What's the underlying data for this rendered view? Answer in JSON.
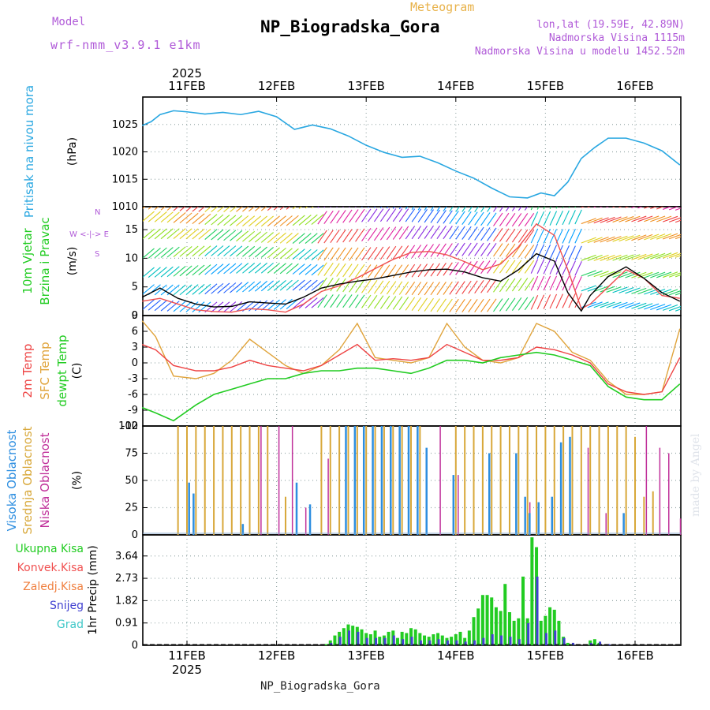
{
  "header": {
    "model_label": "Model",
    "model_name": "wrf-nmm_v3.9.1 e1km",
    "product": "Meteogram",
    "station": "NP_Biogradska_Gora",
    "coords": "lon,lat (19.59E, 42.89N)",
    "alt_station": "Nadmorska Visina 1115m",
    "alt_model": "Nadmorska Visina u modelu 1452.52m",
    "footer_station": "NP_Biogradska_Gora",
    "watermark": "made by Angel"
  },
  "time_axis": {
    "year": "2025",
    "days": [
      "11FEB",
      "12FEB",
      "13FEB",
      "14FEB",
      "15FEB",
      "16FEB"
    ]
  },
  "colors": {
    "pressure": "#29a7e1",
    "wind_speed": "#000000",
    "wind_gust": "#f05050",
    "temp_2m": "#ee4444",
    "temp_sfc": "#e0a43c",
    "dewpoint": "#22cc22",
    "cloud_high": "#2d8ee0",
    "cloud_mid": "#d8a83a",
    "cloud_low": "#c0309a",
    "precip_total": "#22cc22",
    "precip_conv": "#f05050",
    "precip_strat": "#f08040",
    "snow": "#4040d0",
    "hail": "#40c8c8",
    "accent_label": "#b05ad8"
  },
  "chart_data": [
    {
      "type": "line",
      "title": "",
      "ylabel": "Pritisak na nivou mora",
      "unit": "(hPa)",
      "yticks": [
        "1010",
        "1015",
        "1020",
        "1025"
      ],
      "ylim": [
        1010,
        1030
      ],
      "series": [
        {
          "name": "Pritisak na nivou mora",
          "x": [
            0,
            0.1,
            0.2,
            0.35,
            0.5,
            0.7,
            0.9,
            1.1,
            1.3,
            1.5,
            1.7,
            1.9,
            2.1,
            2.3,
            2.5,
            2.7,
            2.9,
            3.1,
            3.3,
            3.5,
            3.7,
            3.9,
            4.1,
            4.3,
            4.45,
            4.6,
            4.75,
            4.9,
            5.05,
            5.2,
            5.4,
            5.6,
            5.8,
            6.0
          ],
          "values": [
            1024.8,
            1025.5,
            1026.8,
            1027.5,
            1027.3,
            1026.9,
            1027.2,
            1026.8,
            1027.4,
            1026.4,
            1024.1,
            1024.9,
            1024.2,
            1022.9,
            1021.2,
            1019.9,
            1019.0,
            1019.2,
            1018.0,
            1016.5,
            1015.2,
            1013.4,
            1011.8,
            1011.6,
            1012.5,
            1012.0,
            1014.5,
            1018.8,
            1020.8,
            1022.5,
            1022.5,
            1021.6,
            1020.2,
            1017.6
          ]
        }
      ]
    },
    {
      "type": "line",
      "title": "",
      "ylabel": "10m Vjetar Brzina i Pravac",
      "unit": "(m/s)",
      "compass": {
        "n": "N",
        "s": "S",
        "w": "W",
        "e": "E"
      },
      "yticks": [
        "0",
        "5",
        "10",
        "15"
      ],
      "ylim": [
        0,
        19
      ],
      "series": [
        {
          "name": "Brzina",
          "x": [
            0,
            0.2,
            0.4,
            0.6,
            0.8,
            1.0,
            1.2,
            1.4,
            1.6,
            1.8,
            2.0,
            2.2,
            2.4,
            2.6,
            2.8,
            3.0,
            3.2,
            3.4,
            3.6,
            3.8,
            4.0,
            4.2,
            4.4,
            4.6,
            4.75,
            4.9,
            5.0,
            5.2,
            5.4,
            5.6,
            5.8,
            6.0
          ],
          "values": [
            3.2,
            4.8,
            3.0,
            2.0,
            1.5,
            1.6,
            2.4,
            2.2,
            2.0,
            3.2,
            4.8,
            5.5,
            6.0,
            6.4,
            7.0,
            7.6,
            8.0,
            8.1,
            7.6,
            6.6,
            6.0,
            8.0,
            10.8,
            9.5,
            4.0,
            0.8,
            3.5,
            6.8,
            8.5,
            6.5,
            4.0,
            2.5
          ]
        },
        {
          "name": "Udari",
          "x": [
            0,
            0.2,
            0.4,
            0.6,
            0.8,
            1.0,
            1.2,
            1.4,
            1.6,
            1.8,
            2.0,
            2.2,
            2.4,
            2.6,
            2.8,
            3.0,
            3.2,
            3.4,
            3.6,
            3.8,
            4.0,
            4.2,
            4.4,
            4.6,
            4.75,
            4.9,
            5.0,
            5.2,
            5.4,
            5.6,
            5.8,
            6.0
          ],
          "values": [
            2.5,
            3.0,
            2.0,
            1.0,
            0.7,
            0.6,
            1.2,
            1.0,
            0.6,
            2.0,
            4.2,
            5.2,
            6.6,
            8.2,
            9.8,
            11.0,
            11.2,
            10.6,
            9.4,
            8.0,
            9.0,
            12.0,
            16.0,
            14.0,
            8.0,
            1.2,
            2.0,
            5.0,
            8.0,
            6.5,
            3.5,
            3.0
          ]
        }
      ]
    },
    {
      "type": "line",
      "title": "",
      "ylabel": "2m Temp / SFC Temp / dewpt Temp",
      "labels": [
        "2m Temp",
        "SFC Temp",
        "dewpt Temp"
      ],
      "unit": "(C)",
      "yticks": [
        "-12",
        "-9",
        "-6",
        "-3",
        "0",
        "3",
        "6",
        "9"
      ],
      "ylim": [
        -12,
        9
      ],
      "series": [
        {
          "name": "2m Temp",
          "x": [
            0,
            0.15,
            0.35,
            0.6,
            0.8,
            1.0,
            1.2,
            1.4,
            1.6,
            1.8,
            2.0,
            2.2,
            2.4,
            2.6,
            2.8,
            3.0,
            3.2,
            3.4,
            3.6,
            3.8,
            4.0,
            4.2,
            4.4,
            4.6,
            4.8,
            5.0,
            5.2,
            5.4,
            5.6,
            5.8,
            6.0
          ],
          "values": [
            3.5,
            2.5,
            -0.5,
            -1.5,
            -1.5,
            -0.8,
            0.5,
            -0.5,
            -1.0,
            -1.5,
            -0.5,
            1.5,
            3.5,
            0.5,
            0.8,
            0.5,
            1.0,
            3.5,
            2.0,
            0.5,
            0.5,
            1.0,
            3.0,
            2.5,
            1.5,
            0.0,
            -4.0,
            -5.5,
            -6.0,
            -5.5,
            1.0
          ]
        },
        {
          "name": "SFC Temp",
          "x": [
            0,
            0.15,
            0.35,
            0.6,
            0.8,
            1.0,
            1.2,
            1.4,
            1.6,
            1.8,
            2.0,
            2.2,
            2.4,
            2.6,
            2.8,
            3.0,
            3.2,
            3.4,
            3.6,
            3.8,
            4.0,
            4.2,
            4.4,
            4.6,
            4.8,
            5.0,
            5.2,
            5.4,
            5.6,
            5.8,
            6.0
          ],
          "values": [
            8.0,
            5.0,
            -2.5,
            -3.0,
            -2.0,
            0.5,
            4.5,
            2.0,
            -0.5,
            -2.0,
            -0.5,
            2.5,
            7.5,
            1.0,
            0.5,
            0.0,
            1.0,
            7.5,
            3.0,
            0.5,
            0.0,
            1.0,
            7.5,
            6.0,
            2.0,
            0.5,
            -3.5,
            -6.0,
            -6.0,
            -5.5,
            6.5
          ]
        },
        {
          "name": "dewpt Temp",
          "x": [
            0,
            0.15,
            0.35,
            0.6,
            0.8,
            1.0,
            1.2,
            1.4,
            1.6,
            1.8,
            2.0,
            2.2,
            2.4,
            2.6,
            2.8,
            3.0,
            3.2,
            3.4,
            3.6,
            3.8,
            4.0,
            4.2,
            4.4,
            4.6,
            4.8,
            5.0,
            5.2,
            5.4,
            5.6,
            5.8,
            6.0
          ],
          "values": [
            -8.5,
            -9.5,
            -11.0,
            -8.0,
            -6.0,
            -5.0,
            -4.0,
            -3.0,
            -3.0,
            -2.0,
            -1.5,
            -1.5,
            -1.0,
            -1.0,
            -1.5,
            -2.0,
            -1.0,
            0.5,
            0.5,
            0.0,
            1.0,
            1.5,
            2.0,
            1.5,
            0.5,
            -0.5,
            -4.5,
            -6.5,
            -7.0,
            -7.0,
            -4.0
          ]
        }
      ]
    },
    {
      "type": "bar",
      "title": "",
      "ylabel": "Visoka / Srednja / Niska Oblacnost",
      "labels": [
        "Visoka Oblacnost",
        "Srednja Oblacnost",
        "Niska Oblacnost"
      ],
      "unit": "(%)",
      "yticks": [
        "0",
        "25",
        "50",
        "75",
        "100"
      ],
      "ylim": [
        0,
        100
      ],
      "series": [
        {
          "name": "Visoka Oblacnost",
          "x": [
            0.55,
            0.6,
            1.15,
            1.75,
            1.9,
            2.3,
            2.4,
            2.5,
            2.6,
            2.7,
            2.8,
            2.9,
            3.0,
            3.1,
            3.2,
            3.5,
            3.9,
            4.2,
            4.3,
            4.35,
            4.45,
            4.6,
            4.7,
            4.8,
            5.4
          ],
          "values": [
            48,
            38,
            10,
            48,
            28,
            100,
            100,
            100,
            100,
            100,
            100,
            100,
            100,
            100,
            80,
            55,
            75,
            75,
            35,
            20,
            30,
            35,
            85,
            90,
            20
          ]
        },
        {
          "name": "Srednja Oblacnost",
          "x": [
            0.4,
            0.5,
            0.6,
            0.7,
            0.8,
            0.9,
            1.0,
            1.1,
            1.2,
            1.3,
            1.4,
            1.6,
            2.0,
            2.1,
            2.2,
            2.3,
            2.4,
            2.5,
            2.6,
            2.7,
            2.8,
            2.9,
            3.0,
            3.1,
            3.5,
            3.6,
            3.7,
            3.8,
            3.9,
            4.0,
            4.1,
            4.2,
            4.3,
            4.4,
            4.5,
            4.6,
            4.7,
            4.8,
            4.9,
            5.0,
            5.1,
            5.2,
            5.3,
            5.4,
            5.5,
            5.6,
            5.7
          ],
          "values": [
            100,
            100,
            100,
            100,
            100,
            100,
            100,
            100,
            100,
            100,
            100,
            35,
            100,
            100,
            100,
            100,
            100,
            100,
            100,
            100,
            100,
            100,
            100,
            100,
            100,
            100,
            100,
            100,
            100,
            100,
            100,
            100,
            100,
            100,
            100,
            100,
            100,
            100,
            100,
            100,
            100,
            100,
            100,
            100,
            90,
            35,
            40
          ]
        },
        {
          "name": "Niska Oblacnost",
          "x": [
            1.3,
            1.5,
            1.65,
            1.8,
            2.05,
            2.35,
            3.3,
            3.5,
            4.3,
            4.95,
            5.15,
            5.6,
            5.75,
            5.85,
            5.98
          ],
          "values": [
            100,
            100,
            100,
            25,
            70,
            100,
            100,
            55,
            30,
            80,
            20,
            100,
            80,
            75,
            15
          ]
        }
      ]
    },
    {
      "type": "bar",
      "title": "",
      "ylabel": "1hr Precip",
      "unit": "(mm)",
      "labels": [
        "Ukupna Kisa",
        "Konvek.Kisa",
        "Zaledj.Kisa",
        "Snijeg",
        "Grad"
      ],
      "yticks": [
        "0",
        "0.91",
        "1.82",
        "2.73",
        "3.64"
      ],
      "ylim": [
        0,
        4.5
      ],
      "series": [
        {
          "name": "Ukupna Kisa",
          "x": [
            2.05,
            2.1,
            2.15,
            2.2,
            2.25,
            2.3,
            2.35,
            2.4,
            2.45,
            2.5,
            2.55,
            2.6,
            2.65,
            2.7,
            2.75,
            2.8,
            2.85,
            2.9,
            2.95,
            3.0,
            3.05,
            3.1,
            3.15,
            3.2,
            3.25,
            3.3,
            3.35,
            3.4,
            3.45,
            3.5,
            3.55,
            3.6,
            3.65,
            3.7,
            3.75,
            3.8,
            3.85,
            3.9,
            3.95,
            4.0,
            4.05,
            4.1,
            4.15,
            4.2,
            4.25,
            4.3,
            4.35,
            4.4,
            4.45,
            4.5,
            4.55,
            4.6,
            4.65,
            4.7,
            4.75,
            4.8,
            4.85,
            4.9,
            4.95,
            5.0,
            5.05,
            5.1,
            5.15,
            5.2,
            5.25,
            5.3,
            5.35,
            5.4,
            5.45,
            5.5,
            5.55,
            5.6,
            5.65,
            5.7,
            5.75,
            5.8,
            5.85,
            5.9,
            5.95,
            6.0
          ],
          "values": [
            0.05,
            0.2,
            0.4,
            0.55,
            0.7,
            0.85,
            0.8,
            0.75,
            0.65,
            0.5,
            0.45,
            0.6,
            0.35,
            0.4,
            0.55,
            0.6,
            0.3,
            0.55,
            0.5,
            0.7,
            0.65,
            0.5,
            0.4,
            0.35,
            0.45,
            0.5,
            0.4,
            0.3,
            0.35,
            0.45,
            0.55,
            0.3,
            0.6,
            1.15,
            1.5,
            2.05,
            2.05,
            1.95,
            1.55,
            1.4,
            2.5,
            1.35,
            1.0,
            1.1,
            2.8,
            1.1,
            4.4,
            4.0,
            1.0,
            1.2,
            1.55,
            1.45,
            1.0,
            0.35,
            0.1,
            0.05,
            0.0,
            0.0,
            0.0,
            0.2,
            0.25,
            0.1,
            0.0,
            0.0,
            0.0,
            0.0,
            0.0,
            0.0,
            0.0,
            0.0,
            0.0,
            0.0,
            0.0,
            0.0,
            0.0,
            0.0,
            0.0,
            0.0,
            0.0,
            0.0
          ]
        },
        {
          "name": "Snijeg",
          "x": [
            2.1,
            2.2,
            2.3,
            2.4,
            2.5,
            2.6,
            2.7,
            2.8,
            2.9,
            3.0,
            3.1,
            3.2,
            3.3,
            3.4,
            3.5,
            3.6,
            3.7,
            3.8,
            3.9,
            4.0,
            4.1,
            4.2,
            4.3,
            4.4,
            4.5,
            4.6,
            4.7,
            4.8,
            4.9,
            5.0,
            5.1,
            5.2
          ],
          "values": [
            0.1,
            0.35,
            0.6,
            0.55,
            0.3,
            0.3,
            0.3,
            0.4,
            0.25,
            0.35,
            0.2,
            0.2,
            0.25,
            0.2,
            0.2,
            0.15,
            0.2,
            0.3,
            0.45,
            0.4,
            0.35,
            0.25,
            0.9,
            2.8,
            0.5,
            0.6,
            0.3,
            0.1,
            0.0,
            0.1,
            0.15,
            0.05
          ]
        }
      ]
    }
  ]
}
